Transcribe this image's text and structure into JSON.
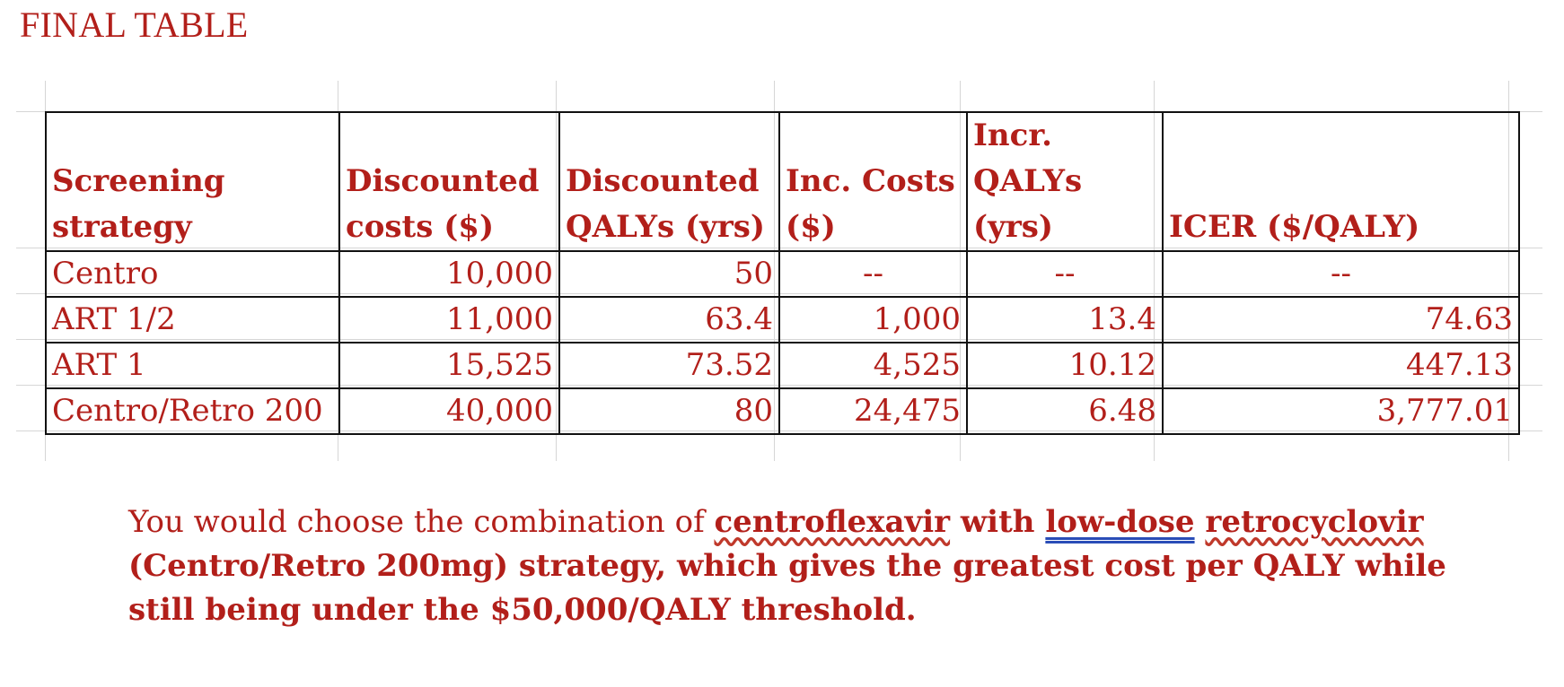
{
  "title": "FINAL TABLE",
  "table": {
    "headers": [
      "Screening strategy",
      "Discounted costs ($)",
      "Discounted QALYs (yrs)",
      "Inc. Costs ($)",
      "Incr. QALYs (yrs)",
      "ICER ($/QALY)"
    ],
    "rows": [
      [
        "Centro",
        "10,000",
        "50",
        "--",
        "--",
        "--"
      ],
      [
        "ART 1/2",
        "11,000",
        "63.4",
        "1,000",
        "13.4",
        "74.63"
      ],
      [
        "ART 1",
        "15,525",
        "73.52",
        "4,525",
        "10.12",
        "447.13"
      ],
      [
        "Centro/Retro 200",
        "40,000",
        "80",
        "24,475",
        "6.48",
        "3,777.01"
      ]
    ]
  },
  "answer": {
    "intro": "You would choose the combination of ",
    "drug1": "centroflexavir",
    "with": " with ",
    "dose": "low-dose",
    "space": " ",
    "drug2": "retrocyclovir",
    "rest": " (Centro/Retro 200mg) strategy, which gives the greatest cost per QALY while still being under the $50,000/QALY threshold."
  },
  "colors": {
    "text": "#b21f1a",
    "border": "#111111",
    "gridline": "#d6d6d6"
  }
}
